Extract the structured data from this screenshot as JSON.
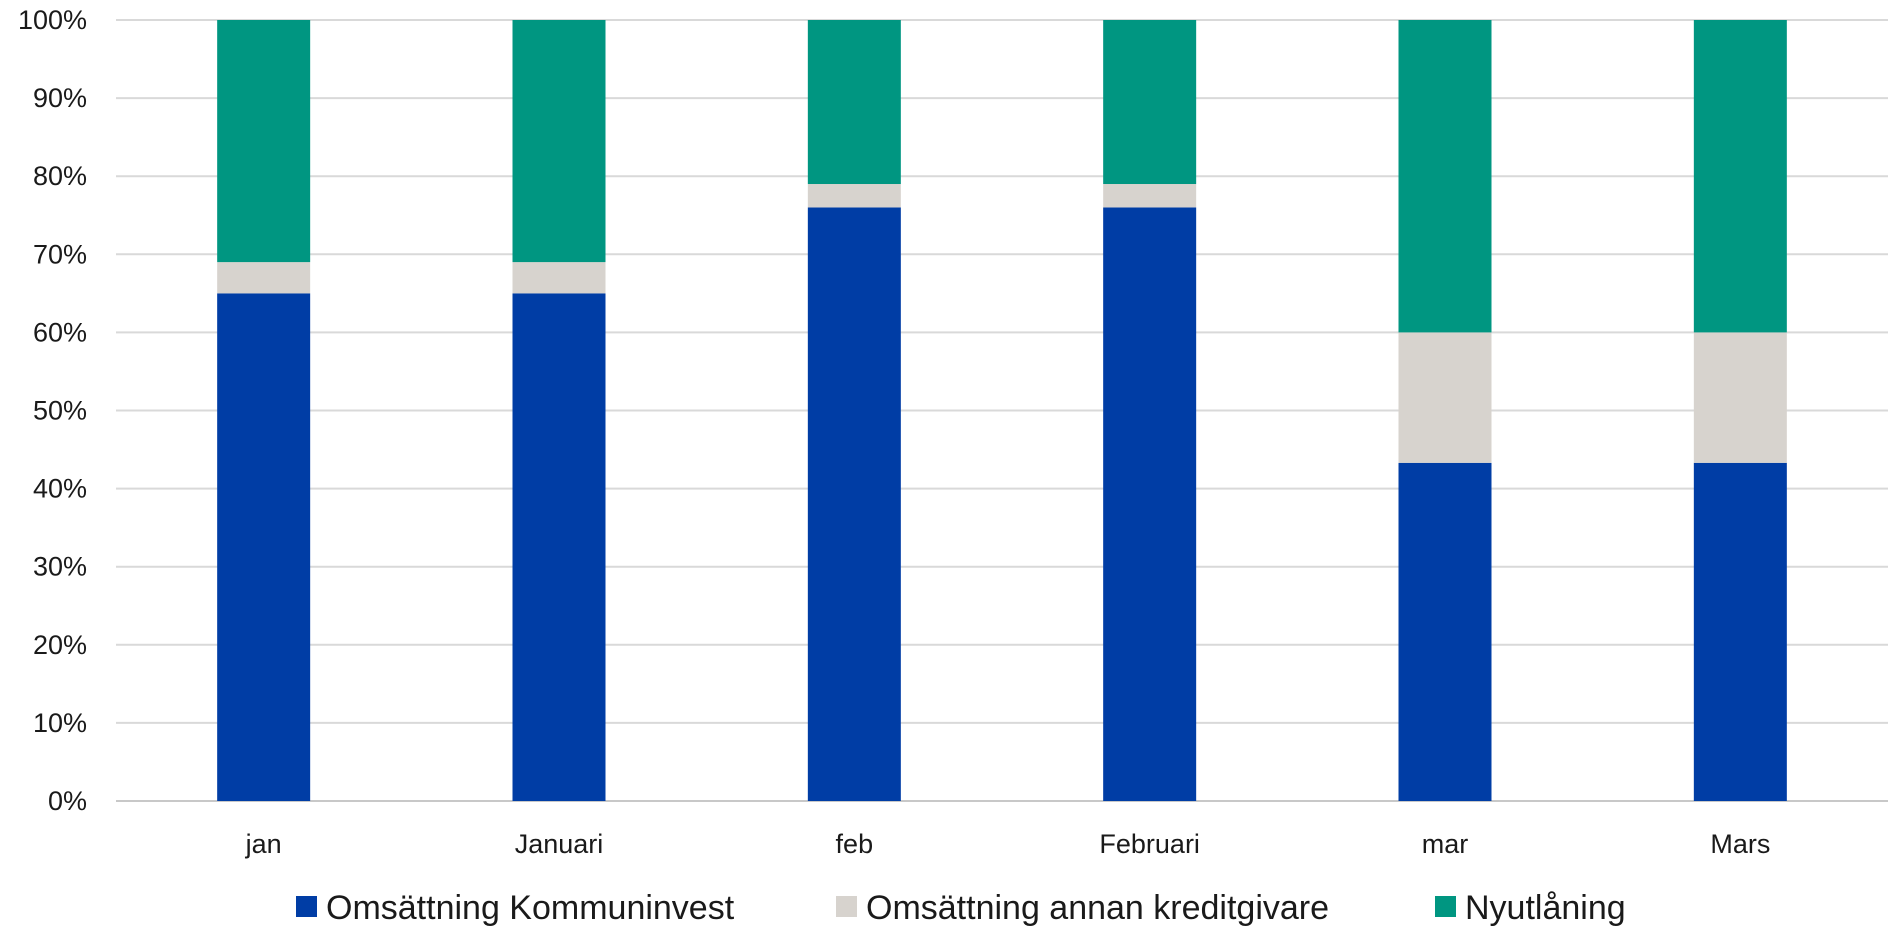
{
  "chart_data": {
    "type": "bar",
    "stacked": true,
    "categories": [
      "jan",
      "Januari",
      "feb",
      "Februari",
      "mar",
      "Mars"
    ],
    "series": [
      {
        "name": "Omsättning Kommuninvest",
        "color": "#003DA5",
        "values": [
          65,
          65,
          76,
          76,
          43.3,
          43.3
        ]
      },
      {
        "name": "Omsättning annan kreditgivare",
        "color": "#D7D3CE",
        "values": [
          4,
          4,
          3,
          3,
          16.7,
          16.7
        ]
      },
      {
        "name": "Nyutlåning",
        "color": "#009681",
        "values": [
          31,
          31,
          21,
          21,
          40,
          40
        ]
      }
    ],
    "ylim": [
      0,
      100
    ],
    "yticks": [
      "0%",
      "10%",
      "20%",
      "30%",
      "40%",
      "50%",
      "60%",
      "70%",
      "80%",
      "90%",
      "100%"
    ],
    "grid": true,
    "legend_position": "bottom"
  }
}
